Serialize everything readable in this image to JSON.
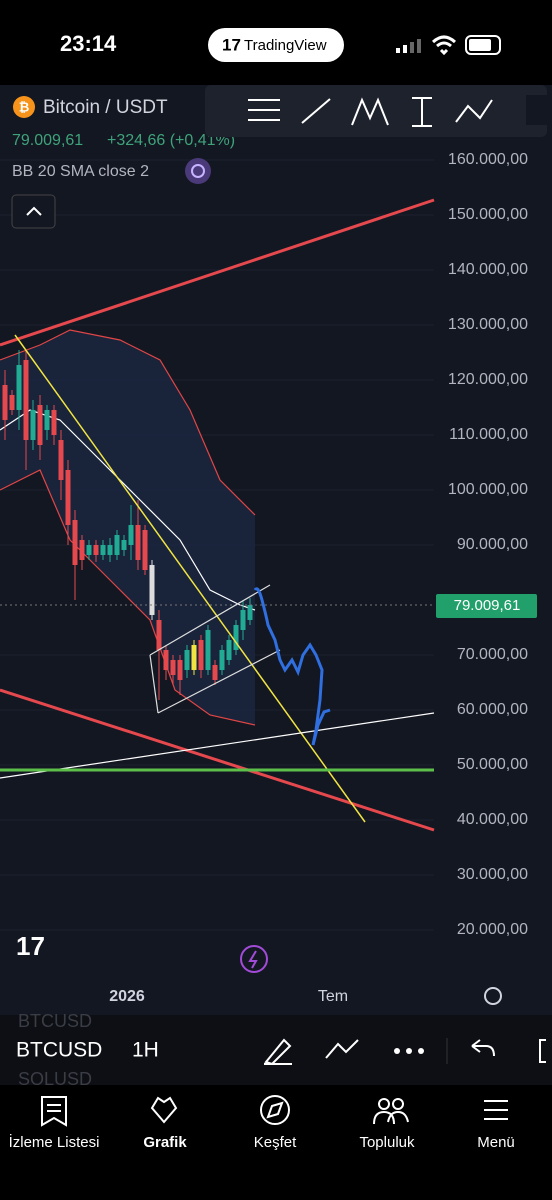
{
  "status_bar": {
    "time": "23:14",
    "app_badge": "TradingView"
  },
  "chart_header": {
    "symbol": "Bitcoin / USDT",
    "price": "79.009,61",
    "change": "+324,66 (+0,41%)",
    "indicator": "BB 20 SMA close 2"
  },
  "price_axis": [
    "160.000,00",
    "150.000,00",
    "140.000,00",
    "130.000,00",
    "120.000,00",
    "110.000,00",
    "100.000,00",
    "90.000,00",
    "70.000,00",
    "60.000,00",
    "50.000,00",
    "40.000,00",
    "30.000,00",
    "20.000,00"
  ],
  "current_price_label": "79.009,61",
  "time_axis": [
    "2026",
    "Tem"
  ],
  "symbol_bar": {
    "symbol": "BTCUSD",
    "interval": "1H",
    "ghost_above": "BTCUSD",
    "ghost_below": "SOLUSD"
  },
  "tabs": [
    "İzleme Listesi",
    "Grafik",
    "Keşfet",
    "Topluluk",
    "Menü"
  ]
}
